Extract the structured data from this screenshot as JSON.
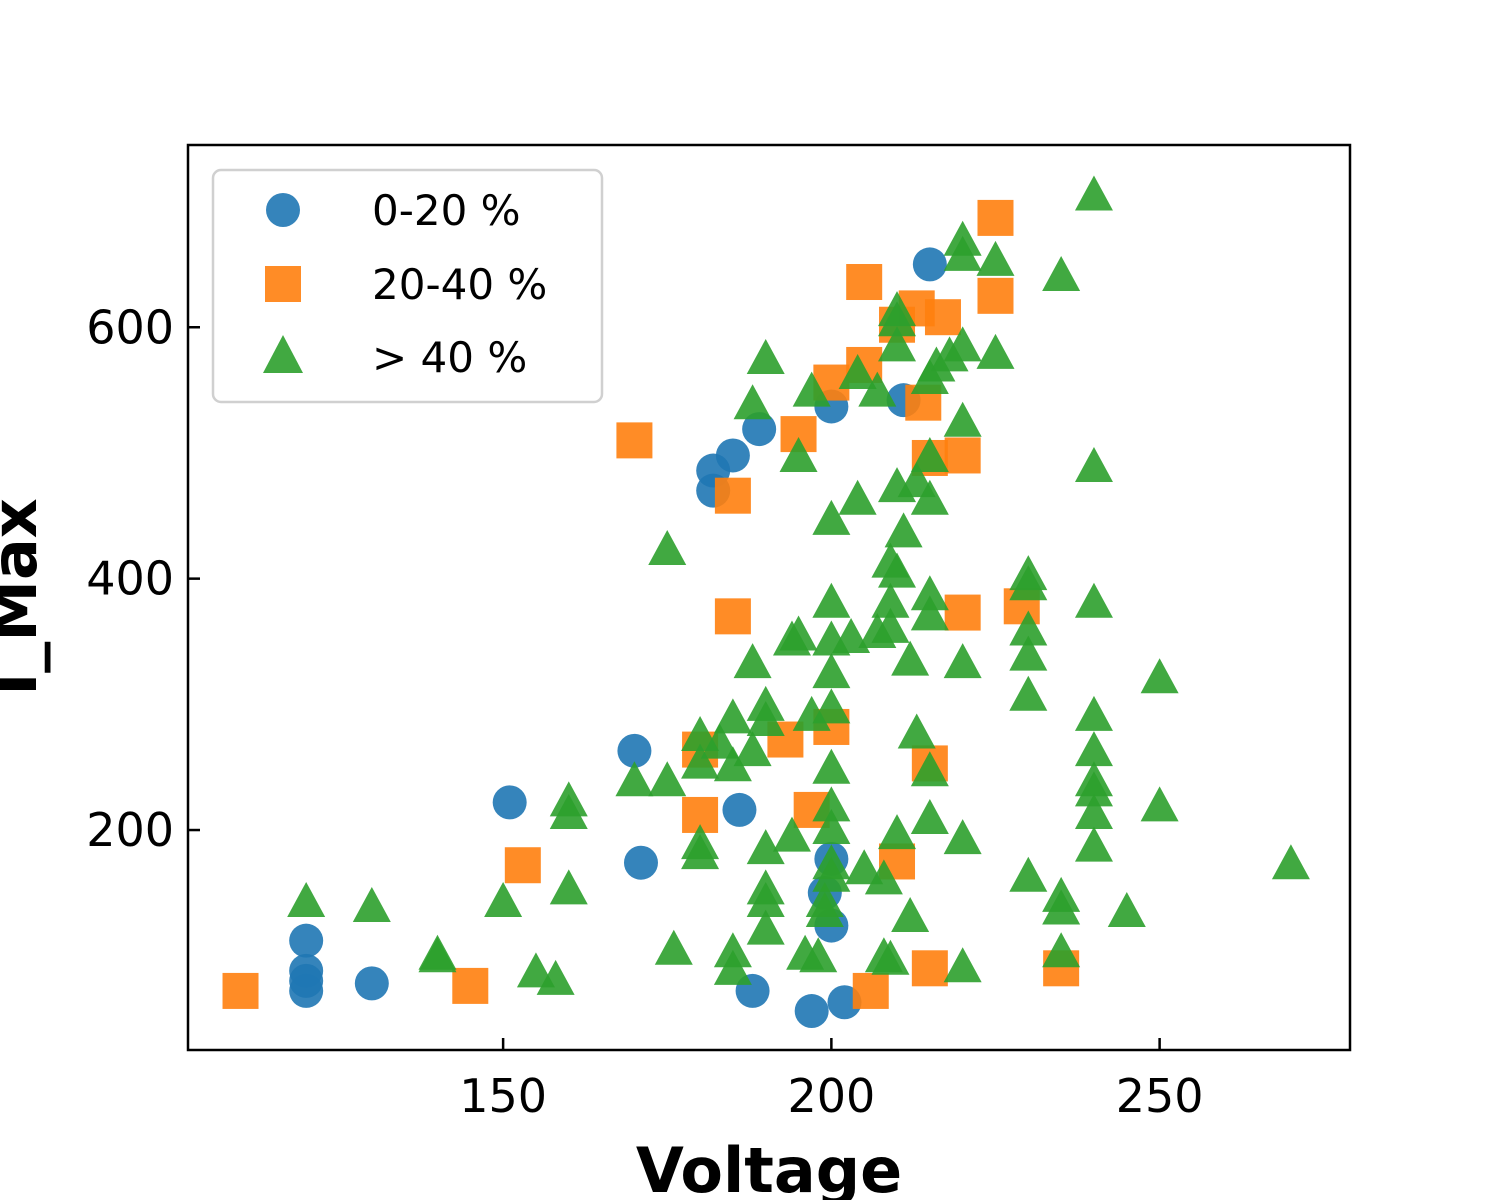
{
  "chart_data": {
    "type": "scatter",
    "xlabel": "Voltage",
    "ylabel": "I_Max",
    "xlim": [
      102,
      279
    ],
    "ylim": [
      25,
      745
    ],
    "xticks": [
      150,
      200,
      250
    ],
    "yticks": [
      200,
      400,
      600
    ],
    "legend_position": "top-left",
    "series": [
      {
        "name": "0-20 %",
        "marker": "circle",
        "color": "#1f77b4",
        "points": [
          [
            120,
            112
          ],
          [
            120,
            88
          ],
          [
            120,
            80
          ],
          [
            120,
            72
          ],
          [
            130,
            78
          ],
          [
            151,
            222
          ],
          [
            170,
            263
          ],
          [
            171,
            174
          ],
          [
            182,
            486
          ],
          [
            182,
            470
          ],
          [
            185,
            498
          ],
          [
            186,
            216
          ],
          [
            188,
            72
          ],
          [
            189,
            519
          ],
          [
            197,
            56
          ],
          [
            200,
            537
          ],
          [
            200,
            177
          ],
          [
            199,
            150
          ],
          [
            200,
            124
          ],
          [
            202,
            63
          ],
          [
            211,
            542
          ],
          [
            215,
            650
          ]
        ]
      },
      {
        "name": "20-40 %",
        "marker": "square",
        "color": "#ff7f0e",
        "points": [
          [
            110,
            72
          ],
          [
            145,
            76
          ],
          [
            153,
            172
          ],
          [
            170,
            510
          ],
          [
            180,
            264
          ],
          [
            180,
            212
          ],
          [
            185,
            466
          ],
          [
            185,
            370
          ],
          [
            193,
            272
          ],
          [
            195,
            515
          ],
          [
            197,
            216
          ],
          [
            200,
            556
          ],
          [
            200,
            282
          ],
          [
            205,
            636
          ],
          [
            205,
            570
          ],
          [
            210,
            602
          ],
          [
            210,
            175
          ],
          [
            213,
            615
          ],
          [
            214,
            540
          ],
          [
            215,
            496
          ],
          [
            215,
            253
          ],
          [
            215,
            90
          ],
          [
            217,
            608
          ],
          [
            206,
            72
          ],
          [
            220,
            498
          ],
          [
            220,
            373
          ],
          [
            225,
            687
          ],
          [
            225,
            625
          ],
          [
            229,
            378
          ],
          [
            235,
            90
          ]
        ]
      },
      {
        "name": "> 40 %",
        "marker": "triangle",
        "color": "#2ca02c",
        "points": [
          [
            120,
            142
          ],
          [
            130,
            138
          ],
          [
            140,
            100
          ],
          [
            140,
            98
          ],
          [
            150,
            142
          ],
          [
            155,
            86
          ],
          [
            158,
            80
          ],
          [
            160,
            222
          ],
          [
            160,
            212
          ],
          [
            160,
            152
          ],
          [
            170,
            238
          ],
          [
            175,
            238
          ],
          [
            175,
            422
          ],
          [
            176,
            104
          ],
          [
            180,
            274
          ],
          [
            180,
            252
          ],
          [
            180,
            188
          ],
          [
            180,
            180
          ],
          [
            183,
            268
          ],
          [
            185,
            288
          ],
          [
            185,
            250
          ],
          [
            185,
            102
          ],
          [
            185,
            88
          ],
          [
            188,
            538
          ],
          [
            188,
            332
          ],
          [
            188,
            262
          ],
          [
            190,
            574
          ],
          [
            190,
            298
          ],
          [
            190,
            286
          ],
          [
            190,
            184
          ],
          [
            190,
            152
          ],
          [
            190,
            142
          ],
          [
            190,
            120
          ],
          [
            194,
            350
          ],
          [
            194,
            194
          ],
          [
            195,
            496
          ],
          [
            195,
            354
          ],
          [
            196,
            100
          ],
          [
            197,
            548
          ],
          [
            197,
            290
          ],
          [
            198,
            98
          ],
          [
            199,
            142
          ],
          [
            199,
            134
          ],
          [
            200,
            446
          ],
          [
            200,
            380
          ],
          [
            200,
            350
          ],
          [
            200,
            324
          ],
          [
            200,
            296
          ],
          [
            200,
            248
          ],
          [
            200,
            218
          ],
          [
            200,
            200
          ],
          [
            200,
            172
          ],
          [
            200,
            162
          ],
          [
            203,
            352
          ],
          [
            204,
            562
          ],
          [
            204,
            462
          ],
          [
            205,
            168
          ],
          [
            207,
            548
          ],
          [
            207,
            356
          ],
          [
            208,
            160
          ],
          [
            208,
            98
          ],
          [
            209,
            412
          ],
          [
            209,
            380
          ],
          [
            209,
            360
          ],
          [
            209,
            96
          ],
          [
            210,
            472
          ],
          [
            210,
            404
          ],
          [
            210,
            196
          ],
          [
            210,
            612
          ],
          [
            210,
            604
          ],
          [
            210,
            584
          ],
          [
            211,
            436
          ],
          [
            212,
            334
          ],
          [
            212,
            130
          ],
          [
            213,
            276
          ],
          [
            213,
            476
          ],
          [
            215,
            496
          ],
          [
            215,
            462
          ],
          [
            215,
            386
          ],
          [
            215,
            370
          ],
          [
            215,
            246
          ],
          [
            215,
            208
          ],
          [
            215,
            558
          ],
          [
            216,
            568
          ],
          [
            218,
            576
          ],
          [
            220,
            668
          ],
          [
            220,
            656
          ],
          [
            220,
            584
          ],
          [
            220,
            524
          ],
          [
            220,
            332
          ],
          [
            220,
            192
          ],
          [
            220,
            90
          ],
          [
            225,
            652
          ],
          [
            225,
            578
          ],
          [
            230,
            402
          ],
          [
            230,
            394
          ],
          [
            230,
            358
          ],
          [
            230,
            338
          ],
          [
            230,
            306
          ],
          [
            230,
            162
          ],
          [
            235,
            146
          ],
          [
            235,
            136
          ],
          [
            235,
            102
          ],
          [
            240,
            704
          ],
          [
            240,
            488
          ],
          [
            240,
            380
          ],
          [
            240,
            290
          ],
          [
            240,
            262
          ],
          [
            240,
            238
          ],
          [
            240,
            230
          ],
          [
            240,
            212
          ],
          [
            240,
            186
          ],
          [
            245,
            134
          ],
          [
            250,
            320
          ],
          [
            250,
            218
          ],
          [
            270,
            172
          ],
          [
            235,
            640
          ]
        ]
      }
    ]
  }
}
